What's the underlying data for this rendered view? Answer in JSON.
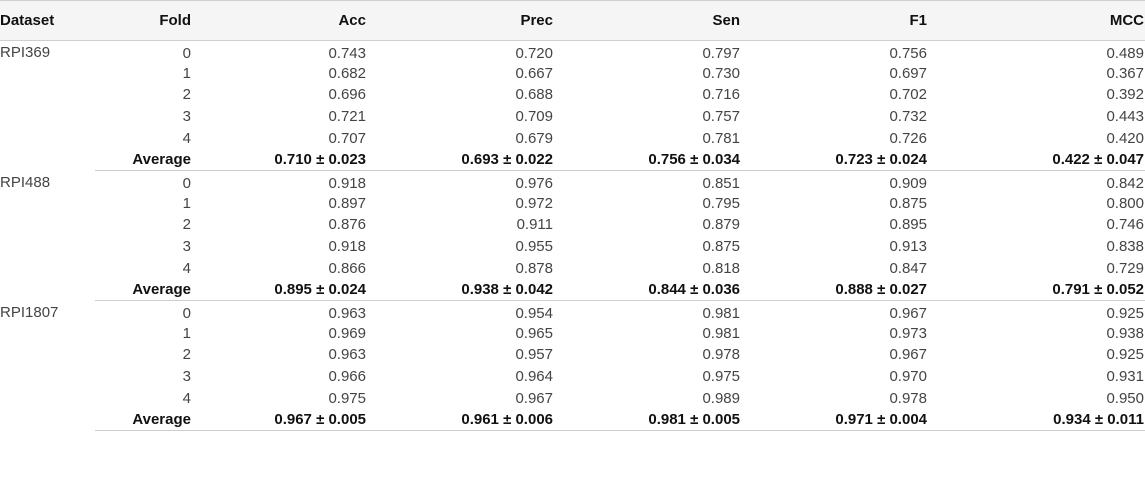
{
  "headers": [
    "Dataset",
    "Fold",
    "Acc",
    "Prec",
    "Sen",
    "F1",
    "MCC"
  ],
  "groups": [
    {
      "dataset": "RPI369",
      "rows": [
        {
          "fold": "0",
          "acc": "0.743",
          "prec": "0.720",
          "sen": "0.797",
          "f1": "0.756",
          "mcc": "0.489"
        },
        {
          "fold": "1",
          "acc": "0.682",
          "prec": "0.667",
          "sen": "0.730",
          "f1": "0.697",
          "mcc": "0.367"
        },
        {
          "fold": "2",
          "acc": "0.696",
          "prec": "0.688",
          "sen": "0.716",
          "f1": "0.702",
          "mcc": "0.392"
        },
        {
          "fold": "3",
          "acc": "0.721",
          "prec": "0.709",
          "sen": "0.757",
          "f1": "0.732",
          "mcc": "0.443"
        },
        {
          "fold": "4",
          "acc": "0.707",
          "prec": "0.679",
          "sen": "0.781",
          "f1": "0.726",
          "mcc": "0.420"
        }
      ],
      "average": {
        "label": "Average",
        "acc": "0.710 ± 0.023",
        "prec": "0.693 ± 0.022",
        "sen": "0.756 ± 0.034",
        "f1": "0.723 ± 0.024",
        "mcc": "0.422 ± 0.047"
      }
    },
    {
      "dataset": "RPI488",
      "rows": [
        {
          "fold": "0",
          "acc": "0.918",
          "prec": "0.976",
          "sen": "0.851",
          "f1": "0.909",
          "mcc": "0.842"
        },
        {
          "fold": "1",
          "acc": "0.897",
          "prec": "0.972",
          "sen": "0.795",
          "f1": "0.875",
          "mcc": "0.800"
        },
        {
          "fold": "2",
          "acc": "0.876",
          "prec": "0.911",
          "sen": "0.879",
          "f1": "0.895",
          "mcc": "0.746"
        },
        {
          "fold": "3",
          "acc": "0.918",
          "prec": "0.955",
          "sen": "0.875",
          "f1": "0.913",
          "mcc": "0.838"
        },
        {
          "fold": "4",
          "acc": "0.866",
          "prec": "0.878",
          "sen": "0.818",
          "f1": "0.847",
          "mcc": "0.729"
        }
      ],
      "average": {
        "label": "Average",
        "acc": "0.895 ± 0.024",
        "prec": "0.938 ± 0.042",
        "sen": "0.844 ± 0.036",
        "f1": "0.888 ± 0.027",
        "mcc": "0.791 ± 0.052"
      }
    },
    {
      "dataset": "RPI1807",
      "rows": [
        {
          "fold": "0",
          "acc": "0.963",
          "prec": "0.954",
          "sen": "0.981",
          "f1": "0.967",
          "mcc": "0.925"
        },
        {
          "fold": "1",
          "acc": "0.969",
          "prec": "0.965",
          "sen": "0.981",
          "f1": "0.973",
          "mcc": "0.938"
        },
        {
          "fold": "2",
          "acc": "0.963",
          "prec": "0.957",
          "sen": "0.978",
          "f1": "0.967",
          "mcc": "0.925"
        },
        {
          "fold": "3",
          "acc": "0.966",
          "prec": "0.964",
          "sen": "0.975",
          "f1": "0.970",
          "mcc": "0.931"
        },
        {
          "fold": "4",
          "acc": "0.975",
          "prec": "0.967",
          "sen": "0.989",
          "f1": "0.978",
          "mcc": "0.950"
        }
      ],
      "average": {
        "label": "Average",
        "acc": "0.967 ± 0.005",
        "prec": "0.961 ± 0.006",
        "sen": "0.981 ± 0.005",
        "f1": "0.971 ± 0.004",
        "mcc": "0.934 ± 0.011"
      }
    }
  ]
}
